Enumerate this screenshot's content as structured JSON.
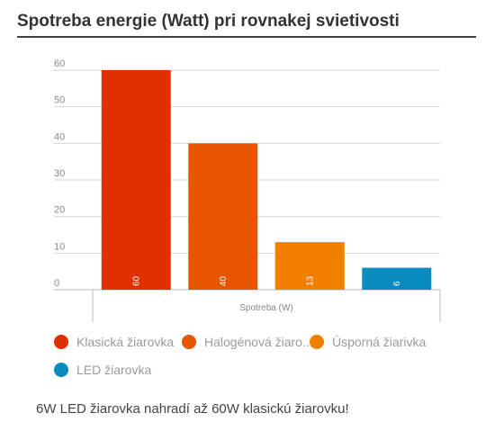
{
  "header": {
    "title": "Spotreba energie (Watt) pri rovnakej svietivosti"
  },
  "chart_data": {
    "type": "bar",
    "title": "Spotreba energie (Watt) pri rovnakej svietivosti",
    "categories": [
      "Spotreba (W)"
    ],
    "xlabel": "Spotreba (W)",
    "ylabel": "",
    "ylim": [
      0,
      60
    ],
    "yticks": [
      "0",
      "10",
      "20",
      "30",
      "40",
      "50",
      "60"
    ],
    "grid": true,
    "legend_position": "bottom",
    "series": [
      {
        "name": "Klasická žiarovka",
        "legend_label": "Klasická žiarovka",
        "value": 60,
        "label": "60",
        "color": "#e03000"
      },
      {
        "name": "Halogénová žiarovka",
        "legend_label": "Halogénová žiaro...",
        "value": 40,
        "label": "40",
        "color": "#e85500"
      },
      {
        "name": "Úsporná žiarivka",
        "legend_label": "Úsporná žiarivka",
        "value": 13,
        "label": "13",
        "color": "#f28000"
      },
      {
        "name": "LED žiarovka",
        "legend_label": "LED žiarovka",
        "value": 6,
        "label": "6",
        "color": "#0a8bc0"
      }
    ]
  },
  "footer": {
    "note": "6W LED žiarovka nahradí až 60W klasickú žiarovku!"
  }
}
